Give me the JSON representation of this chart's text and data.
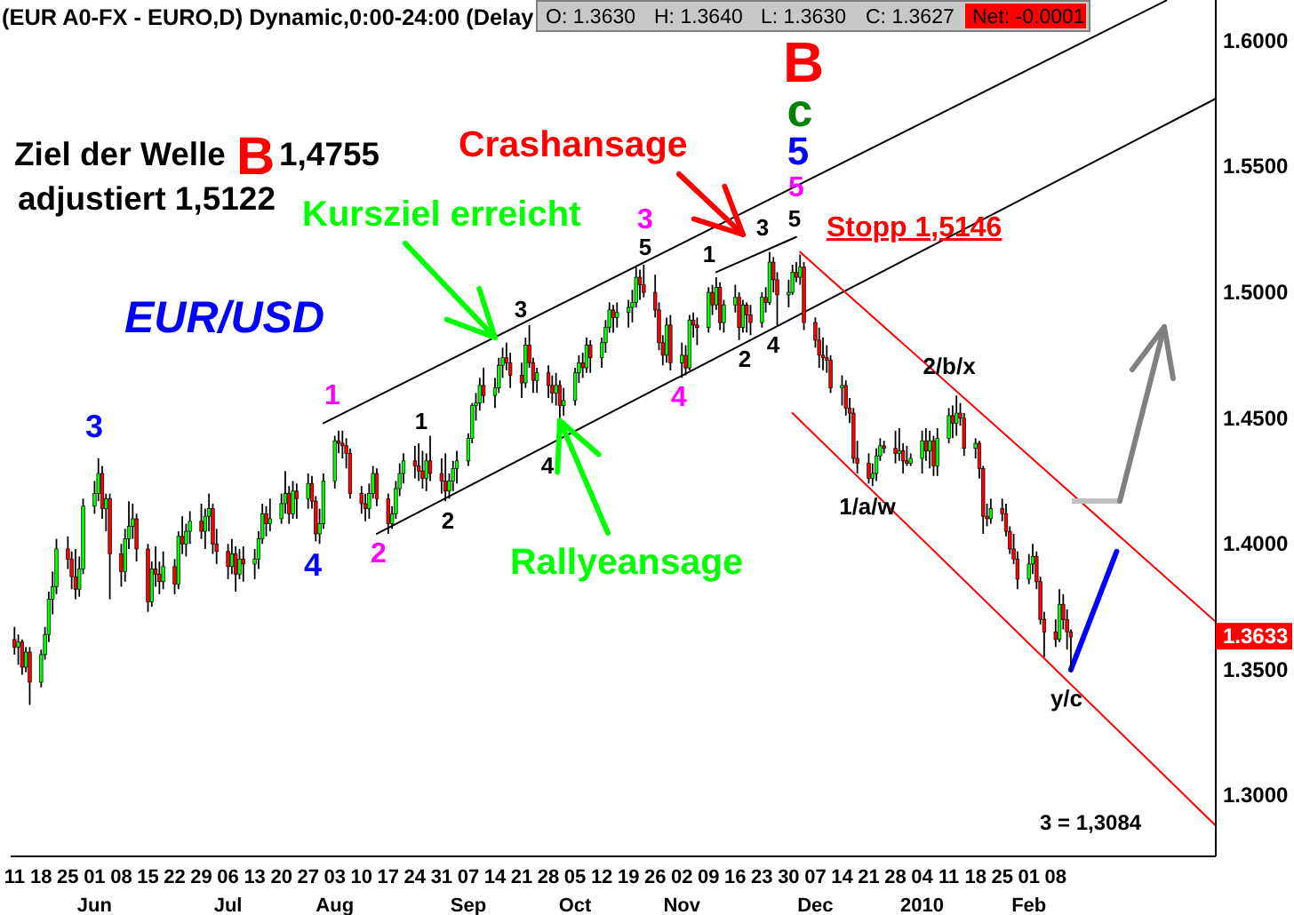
{
  "chart_data": {
    "type": "candlestick",
    "title": "(EUR A0-FX - EURO,D) Dynamic,0:00-24:00 (Delay",
    "series": [
      {
        "x": [
          "2009-05-11",
          "2009-05-12",
          "2009-05-13",
          "2009-05-14",
          "2009-05-15",
          "2009-05-18",
          "2009-05-19",
          "2009-05-20",
          "2009-05-21",
          "2009-05-22",
          "2009-05-25",
          "2009-05-26",
          "2009-05-27",
          "2009-05-28",
          "2009-05-29",
          "2009-06-01",
          "2009-06-02",
          "2009-06-03",
          "2009-06-04",
          "2009-06-05",
          "2009-06-08",
          "2009-06-09",
          "2009-06-10",
          "2009-06-11",
          "2009-06-12",
          "2009-06-15",
          "2009-06-16",
          "2009-06-17",
          "2009-06-18",
          "2009-06-19",
          "2009-06-22",
          "2009-06-23",
          "2009-06-24",
          "2009-06-25",
          "2009-06-26",
          "2009-06-29",
          "2009-06-30",
          "2009-07-01",
          "2009-07-02",
          "2009-07-03",
          "2009-07-06",
          "2009-07-07",
          "2009-07-08",
          "2009-07-09",
          "2009-07-10",
          "2009-07-13",
          "2009-07-14",
          "2009-07-15",
          "2009-07-16",
          "2009-07-17",
          "2009-07-20",
          "2009-07-21",
          "2009-07-22",
          "2009-07-23",
          "2009-07-24",
          "2009-07-27",
          "2009-07-28",
          "2009-07-29",
          "2009-07-30",
          "2009-07-31",
          "2009-08-03",
          "2009-08-04",
          "2009-08-05",
          "2009-08-06",
          "2009-08-07",
          "2009-08-10",
          "2009-08-11",
          "2009-08-12",
          "2009-08-13",
          "2009-08-14",
          "2009-08-17",
          "2009-08-18",
          "2009-08-19",
          "2009-08-20",
          "2009-08-21",
          "2009-08-24",
          "2009-08-25",
          "2009-08-26",
          "2009-08-27",
          "2009-08-28",
          "2009-08-31",
          "2009-09-01",
          "2009-09-02",
          "2009-09-03",
          "2009-09-04",
          "2009-09-07",
          "2009-09-08",
          "2009-09-09",
          "2009-09-10",
          "2009-09-11",
          "2009-09-14",
          "2009-09-15",
          "2009-09-16",
          "2009-09-17",
          "2009-09-18",
          "2009-09-21",
          "2009-09-22",
          "2009-09-23",
          "2009-09-24",
          "2009-09-25",
          "2009-09-28",
          "2009-09-29",
          "2009-09-30",
          "2009-10-01",
          "2009-10-02",
          "2009-10-05",
          "2009-10-06",
          "2009-10-07",
          "2009-10-08",
          "2009-10-09",
          "2009-10-12",
          "2009-10-13",
          "2009-10-14",
          "2009-10-15",
          "2009-10-16",
          "2009-10-19",
          "2009-10-20",
          "2009-10-21",
          "2009-10-22",
          "2009-10-23",
          "2009-10-26",
          "2009-10-27",
          "2009-10-28",
          "2009-10-29",
          "2009-10-30",
          "2009-11-02",
          "2009-11-03",
          "2009-11-04",
          "2009-11-05",
          "2009-11-06",
          "2009-11-09",
          "2009-11-10",
          "2009-11-11",
          "2009-11-12",
          "2009-11-13",
          "2009-11-16",
          "2009-11-17",
          "2009-11-18",
          "2009-11-19",
          "2009-11-20",
          "2009-11-23",
          "2009-11-24",
          "2009-11-25",
          "2009-11-26",
          "2009-11-27",
          "2009-11-30",
          "2009-12-01",
          "2009-12-02",
          "2009-12-03",
          "2009-12-04",
          "2009-12-07",
          "2009-12-08",
          "2009-12-09",
          "2009-12-10",
          "2009-12-11",
          "2009-12-14",
          "2009-12-15",
          "2009-12-16",
          "2009-12-17",
          "2009-12-18",
          "2009-12-21",
          "2009-12-22",
          "2009-12-23",
          "2009-12-24",
          "2009-12-25",
          "2009-12-28",
          "2009-12-29",
          "2009-12-30",
          "2009-12-31",
          "2010-01-01",
          "2010-01-04",
          "2010-01-05",
          "2010-01-06",
          "2010-01-07",
          "2010-01-08",
          "2010-01-11",
          "2010-01-12",
          "2010-01-13",
          "2010-01-14",
          "2010-01-15",
          "2010-01-18",
          "2010-01-19",
          "2010-01-20",
          "2010-01-21",
          "2010-01-22",
          "2010-01-25",
          "2010-01-26",
          "2010-01-27",
          "2010-01-28",
          "2010-01-29",
          "2010-02-01",
          "2010-02-02",
          "2010-02-03",
          "2010-02-04",
          "2010-02-05",
          "2010-02-08",
          "2010-02-09",
          "2010-02-10",
          "2010-02-11",
          "2010-02-12"
        ],
        "ohlc": [
          [
            1.362,
            1.367,
            1.356,
            1.359
          ],
          [
            1.359,
            1.364,
            1.352,
            1.361
          ],
          [
            1.361,
            1.362,
            1.348,
            1.351
          ],
          [
            1.351,
            1.359,
            1.349,
            1.357
          ],
          [
            1.357,
            1.359,
            1.336,
            1.345
          ],
          [
            1.345,
            1.358,
            1.343,
            1.356
          ],
          [
            1.356,
            1.367,
            1.354,
            1.364
          ],
          [
            1.364,
            1.381,
            1.361,
            1.378
          ],
          [
            1.378,
            1.389,
            1.372,
            1.383
          ],
          [
            1.383,
            1.402,
            1.38,
            1.398
          ],
          [
            1.398,
            1.403,
            1.39,
            1.394
          ],
          [
            1.394,
            1.397,
            1.382,
            1.387
          ],
          [
            1.387,
            1.398,
            1.378,
            1.382
          ],
          [
            1.382,
            1.395,
            1.379,
            1.39
          ],
          [
            1.39,
            1.418,
            1.388,
            1.415
          ],
          [
            1.415,
            1.425,
            1.412,
            1.42
          ],
          [
            1.42,
            1.434,
            1.417,
            1.428
          ],
          [
            1.428,
            1.431,
            1.41,
            1.414
          ],
          [
            1.414,
            1.42,
            1.405,
            1.418
          ],
          [
            1.418,
            1.42,
            1.378,
            1.396
          ],
          [
            1.396,
            1.4,
            1.383,
            1.389
          ],
          [
            1.389,
            1.406,
            1.385,
            1.402
          ],
          [
            1.402,
            1.417,
            1.398,
            1.407
          ],
          [
            1.407,
            1.416,
            1.402,
            1.41
          ],
          [
            1.41,
            1.412,
            1.393,
            1.398
          ],
          [
            1.398,
            1.4,
            1.373,
            1.377
          ],
          [
            1.377,
            1.393,
            1.375,
            1.39
          ],
          [
            1.39,
            1.399,
            1.383,
            1.388
          ],
          [
            1.388,
            1.393,
            1.38,
            1.385
          ],
          [
            1.385,
            1.397,
            1.382,
            1.391
          ],
          [
            1.391,
            1.394,
            1.38,
            1.384
          ],
          [
            1.384,
            1.405,
            1.382,
            1.403
          ],
          [
            1.403,
            1.411,
            1.396,
            1.4
          ],
          [
            1.4,
            1.408,
            1.395,
            1.405
          ],
          [
            1.405,
            1.413,
            1.4,
            1.409
          ],
          [
            1.409,
            1.416,
            1.402,
            1.405
          ],
          [
            1.405,
            1.414,
            1.398,
            1.411
          ],
          [
            1.411,
            1.42,
            1.405,
            1.414
          ],
          [
            1.414,
            1.416,
            1.396,
            1.4
          ],
          [
            1.4,
            1.406,
            1.392,
            1.397
          ],
          [
            1.397,
            1.4,
            1.386,
            1.391
          ],
          [
            1.391,
            1.402,
            1.388,
            1.396
          ],
          [
            1.396,
            1.399,
            1.381,
            1.388
          ],
          [
            1.388,
            1.398,
            1.386,
            1.394
          ],
          [
            1.394,
            1.399,
            1.385,
            1.392
          ],
          [
            1.392,
            1.398,
            1.386,
            1.394
          ],
          [
            1.394,
            1.405,
            1.39,
            1.402
          ],
          [
            1.402,
            1.416,
            1.4,
            1.412
          ],
          [
            1.412,
            1.415,
            1.403,
            1.408
          ],
          [
            1.408,
            1.418,
            1.405,
            1.41
          ],
          [
            1.41,
            1.42,
            1.408,
            1.416
          ],
          [
            1.416,
            1.429,
            1.412,
            1.42
          ],
          [
            1.42,
            1.423,
            1.408,
            1.412
          ],
          [
            1.412,
            1.425,
            1.41,
            1.421
          ],
          [
            1.421,
            1.424,
            1.41,
            1.418
          ],
          [
            1.418,
            1.428,
            1.414,
            1.424
          ],
          [
            1.424,
            1.427,
            1.414,
            1.417
          ],
          [
            1.417,
            1.419,
            1.401,
            1.404
          ],
          [
            1.404,
            1.414,
            1.4,
            1.408
          ],
          [
            1.408,
            1.428,
            1.406,
            1.425
          ],
          [
            1.425,
            1.443,
            1.422,
            1.441
          ],
          [
            1.441,
            1.445,
            1.436,
            1.44
          ],
          [
            1.44,
            1.445,
            1.434,
            1.439
          ],
          [
            1.439,
            1.442,
            1.43,
            1.436
          ],
          [
            1.436,
            1.438,
            1.418,
            1.42
          ],
          [
            1.42,
            1.423,
            1.412,
            1.416
          ],
          [
            1.416,
            1.42,
            1.409,
            1.414
          ],
          [
            1.414,
            1.424,
            1.41,
            1.42
          ],
          [
            1.42,
            1.431,
            1.418,
            1.428
          ],
          [
            1.428,
            1.43,
            1.415,
            1.418
          ],
          [
            1.418,
            1.42,
            1.404,
            1.408
          ],
          [
            1.408,
            1.415,
            1.406,
            1.412
          ],
          [
            1.412,
            1.425,
            1.41,
            1.422
          ],
          [
            1.422,
            1.432,
            1.419,
            1.428
          ],
          [
            1.428,
            1.436,
            1.424,
            1.433
          ],
          [
            1.433,
            1.439,
            1.426,
            1.431
          ],
          [
            1.431,
            1.44,
            1.425,
            1.429
          ],
          [
            1.429,
            1.437,
            1.422,
            1.426
          ],
          [
            1.426,
            1.436,
            1.421,
            1.433
          ],
          [
            1.433,
            1.443,
            1.425,
            1.428
          ],
          [
            1.428,
            1.434,
            1.42,
            1.425
          ],
          [
            1.425,
            1.436,
            1.417,
            1.421
          ],
          [
            1.421,
            1.428,
            1.418,
            1.425
          ],
          [
            1.425,
            1.433,
            1.421,
            1.43
          ],
          [
            1.43,
            1.437,
            1.424,
            1.433
          ],
          [
            1.433,
            1.444,
            1.431,
            1.442
          ],
          [
            1.442,
            1.456,
            1.44,
            1.455
          ],
          [
            1.455,
            1.46,
            1.449,
            1.456
          ],
          [
            1.456,
            1.466,
            1.453,
            1.463
          ],
          [
            1.463,
            1.47,
            1.456,
            1.459
          ],
          [
            1.459,
            1.466,
            1.454,
            1.462
          ],
          [
            1.462,
            1.474,
            1.46,
            1.471
          ],
          [
            1.471,
            1.478,
            1.466,
            1.474
          ],
          [
            1.474,
            1.48,
            1.469,
            1.472
          ],
          [
            1.472,
            1.476,
            1.462,
            1.467
          ],
          [
            1.467,
            1.472,
            1.458,
            1.464
          ],
          [
            1.464,
            1.482,
            1.462,
            1.479
          ],
          [
            1.479,
            1.487,
            1.47,
            1.472
          ],
          [
            1.472,
            1.474,
            1.46,
            1.465
          ],
          [
            1.465,
            1.47,
            1.46,
            1.468
          ],
          [
            1.468,
            1.471,
            1.458,
            1.463
          ],
          [
            1.463,
            1.467,
            1.456,
            1.46
          ],
          [
            1.46,
            1.468,
            1.455,
            1.463
          ],
          [
            1.463,
            1.465,
            1.449,
            1.455
          ],
          [
            1.455,
            1.462,
            1.451,
            1.457
          ],
          [
            1.457,
            1.47,
            1.455,
            1.468
          ],
          [
            1.468,
            1.475,
            1.464,
            1.472
          ],
          [
            1.472,
            1.476,
            1.466,
            1.47
          ],
          [
            1.47,
            1.482,
            1.468,
            1.479
          ],
          [
            1.479,
            1.481,
            1.468,
            1.474
          ],
          [
            1.474,
            1.482,
            1.47,
            1.48
          ],
          [
            1.48,
            1.489,
            1.476,
            1.486
          ],
          [
            1.486,
            1.496,
            1.484,
            1.493
          ],
          [
            1.493,
            1.495,
            1.484,
            1.49
          ],
          [
            1.49,
            1.496,
            1.486,
            1.492
          ],
          [
            1.492,
            1.497,
            1.486,
            1.494
          ],
          [
            1.494,
            1.501,
            1.488,
            1.496
          ],
          [
            1.496,
            1.51,
            1.494,
            1.506
          ],
          [
            1.506,
            1.509,
            1.497,
            1.503
          ],
          [
            1.503,
            1.511,
            1.498,
            1.5
          ],
          [
            1.5,
            1.507,
            1.49,
            1.493
          ],
          [
            1.493,
            1.496,
            1.477,
            1.48
          ],
          [
            1.48,
            1.483,
            1.471,
            1.475
          ],
          [
            1.475,
            1.49,
            1.472,
            1.487
          ],
          [
            1.487,
            1.491,
            1.469,
            1.472
          ],
          [
            1.472,
            1.48,
            1.466,
            1.475
          ],
          [
            1.475,
            1.479,
            1.467,
            1.47
          ],
          [
            1.47,
            1.491,
            1.469,
            1.489
          ],
          [
            1.489,
            1.492,
            1.482,
            1.487
          ],
          [
            1.487,
            1.49,
            1.479,
            1.486
          ],
          [
            1.486,
            1.502,
            1.484,
            1.5
          ],
          [
            1.5,
            1.503,
            1.491,
            1.495
          ],
          [
            1.495,
            1.506,
            1.493,
            1.502
          ],
          [
            1.502,
            1.504,
            1.485,
            1.488
          ],
          [
            1.488,
            1.497,
            1.484,
            1.495
          ],
          [
            1.495,
            1.503,
            1.492,
            1.498
          ],
          [
            1.498,
            1.5,
            1.481,
            1.486
          ],
          [
            1.486,
            1.497,
            1.484,
            1.495
          ],
          [
            1.495,
            1.496,
            1.484,
            1.491
          ],
          [
            1.491,
            1.495,
            1.483,
            1.488
          ],
          [
            1.488,
            1.5,
            1.486,
            1.498
          ],
          [
            1.498,
            1.502,
            1.492,
            1.496
          ],
          [
            1.496,
            1.516,
            1.495,
            1.512
          ],
          [
            1.512,
            1.514,
            1.5,
            1.505
          ],
          [
            1.505,
            1.508,
            1.487,
            1.499
          ],
          [
            1.499,
            1.505,
            1.494,
            1.5
          ],
          [
            1.5,
            1.511,
            1.499,
            1.508
          ],
          [
            1.508,
            1.512,
            1.504,
            1.506
          ],
          [
            1.506,
            1.515,
            1.503,
            1.51
          ],
          [
            1.51,
            1.512,
            1.485,
            1.488
          ],
          [
            1.488,
            1.49,
            1.478,
            1.481
          ],
          [
            1.481,
            1.486,
            1.47,
            1.475
          ],
          [
            1.475,
            1.482,
            1.469,
            1.474
          ],
          [
            1.474,
            1.479,
            1.468,
            1.473
          ],
          [
            1.473,
            1.475,
            1.46,
            1.462
          ],
          [
            1.462,
            1.467,
            1.455,
            1.463
          ],
          [
            1.463,
            1.465,
            1.451,
            1.454
          ],
          [
            1.454,
            1.458,
            1.448,
            1.452
          ],
          [
            1.452,
            1.454,
            1.432,
            1.434
          ],
          [
            1.434,
            1.441,
            1.428,
            1.432
          ],
          [
            1.432,
            1.436,
            1.424,
            1.426
          ],
          [
            1.426,
            1.432,
            1.423,
            1.428
          ],
          [
            1.428,
            1.438,
            1.425,
            1.435
          ],
          [
            1.435,
            1.442,
            1.433,
            1.439
          ],
          [
            1.439,
            1.441,
            1.436,
            1.438
          ],
          [
            1.438,
            1.445,
            1.432,
            1.436
          ],
          [
            1.436,
            1.446,
            1.433,
            1.437
          ],
          [
            1.437,
            1.44,
            1.428,
            1.433
          ],
          [
            1.433,
            1.439,
            1.431,
            1.432
          ],
          [
            1.432,
            1.436,
            1.431,
            1.434
          ],
          [
            1.434,
            1.445,
            1.428,
            1.441
          ],
          [
            1.441,
            1.446,
            1.433,
            1.437
          ],
          [
            1.437,
            1.445,
            1.43,
            1.441
          ],
          [
            1.441,
            1.443,
            1.427,
            1.431
          ],
          [
            1.431,
            1.446,
            1.427,
            1.442
          ],
          [
            1.442,
            1.454,
            1.44,
            1.451
          ],
          [
            1.451,
            1.455,
            1.442,
            1.448
          ],
          [
            1.448,
            1.459,
            1.443,
            1.452
          ],
          [
            1.452,
            1.456,
            1.447,
            1.45
          ],
          [
            1.45,
            1.452,
            1.435,
            1.438
          ],
          [
            1.438,
            1.442,
            1.434,
            1.44
          ],
          [
            1.44,
            1.441,
            1.426,
            1.43
          ],
          [
            1.43,
            1.431,
            1.404,
            1.411
          ],
          [
            1.411,
            1.416,
            1.407,
            1.41
          ],
          [
            1.41,
            1.418,
            1.408,
            1.414
          ],
          [
            1.414,
            1.418,
            1.409,
            1.412
          ],
          [
            1.412,
            1.416,
            1.403,
            1.405
          ],
          [
            1.405,
            1.407,
            1.396,
            1.398
          ],
          [
            1.398,
            1.404,
            1.392,
            1.394
          ],
          [
            1.394,
            1.397,
            1.382,
            1.386
          ],
          [
            1.386,
            1.396,
            1.384,
            1.392
          ],
          [
            1.392,
            1.4,
            1.388,
            1.395
          ],
          [
            1.395,
            1.397,
            1.382,
            1.385
          ],
          [
            1.385,
            1.387,
            1.368,
            1.37
          ],
          [
            1.37,
            1.373,
            1.355,
            1.365
          ],
          [
            1.365,
            1.37,
            1.359,
            1.362
          ],
          [
            1.362,
            1.382,
            1.361,
            1.376
          ],
          [
            1.376,
            1.38,
            1.366,
            1.37
          ],
          [
            1.37,
            1.374,
            1.358,
            1.365
          ],
          [
            1.365,
            1.366,
            1.349,
            1.363
          ]
        ],
        "colors": [
          "#ff0000",
          "#00ff00",
          "#ff0000",
          "#00ff00",
          "#ff0000",
          "#00ff00",
          "#00ff00",
          "#00ff00",
          "#00ff00",
          "#00ff00",
          "#ff0000",
          "#ff0000",
          "#ff0000",
          "#00ff00",
          "#00ff00",
          "#00ff00",
          "#00ff00",
          "#ff0000",
          "#00ff00",
          "#ff0000",
          "#ff0000",
          "#00ff00",
          "#00ff00",
          "#00ff00",
          "#ff0000",
          "#ff0000",
          "#00ff00",
          "#ff0000",
          "#ff0000",
          "#00ff00",
          "#ff0000",
          "#00ff00",
          "#ff0000",
          "#00ff00",
          "#00ff00",
          "#ff0000",
          "#00ff00",
          "#00ff00",
          "#ff0000",
          "#ff0000",
          "#ff0000",
          "#00ff00",
          "#ff0000",
          "#00ff00",
          "#ff0000",
          "#00ff00",
          "#00ff00",
          "#00ff00",
          "#ff0000",
          "#00ff00",
          "#00ff00",
          "#00ff00",
          "#ff0000",
          "#00ff00",
          "#ff0000",
          "#00ff00",
          "#ff0000",
          "#ff0000",
          "#00ff00",
          "#00ff00",
          "#00ff00",
          "#ff0000",
          "#ff0000",
          "#ff0000",
          "#ff0000",
          "#ff0000",
          "#ff0000",
          "#00ff00",
          "#00ff00",
          "#ff0000",
          "#ff0000",
          "#00ff00",
          "#00ff00",
          "#00ff00",
          "#00ff00",
          "#ff0000",
          "#ff0000",
          "#ff0000",
          "#00ff00",
          "#ff0000",
          "#ff0000",
          "#ff0000",
          "#00ff00",
          "#00ff00",
          "#00ff00",
          "#00ff00",
          "#00ff00",
          "#00ff00",
          "#00ff00",
          "#ff0000",
          "#00ff00",
          "#00ff00",
          "#00ff00",
          "#ff0000",
          "#ff0000",
          "#ff0000",
          "#00ff00",
          "#ff0000",
          "#ff0000",
          "#00ff00",
          "#ff0000",
          "#ff0000",
          "#00ff00",
          "#ff0000",
          "#00ff00",
          "#00ff00",
          "#00ff00",
          "#ff0000",
          "#00ff00",
          "#ff0000",
          "#00ff00",
          "#00ff00",
          "#00ff00",
          "#ff0000",
          "#00ff00",
          "#00ff00",
          "#00ff00",
          "#00ff00",
          "#ff0000",
          "#ff0000",
          "#ff0000",
          "#ff0000",
          "#ff0000",
          "#00ff00",
          "#ff0000",
          "#00ff00",
          "#ff0000",
          "#00ff00",
          "#ff0000",
          "#ff0000",
          "#00ff00",
          "#ff0000",
          "#00ff00",
          "#ff0000",
          "#00ff00",
          "#00ff00",
          "#ff0000",
          "#00ff00",
          "#ff0000",
          "#ff0000",
          "#00ff00",
          "#ff0000",
          "#00ff00",
          "#ff0000",
          "#ff0000",
          "#00ff00",
          "#00ff00",
          "#ff0000",
          "#00ff00",
          "#ff0000",
          "#ff0000",
          "#ff0000",
          "#ff0000",
          "#ff0000",
          "#ff0000",
          "#00ff00",
          "#ff0000",
          "#ff0000",
          "#ff0000",
          "#ff0000",
          "#ff0000",
          "#00ff00",
          "#00ff00",
          "#00ff00",
          "#ff0000",
          "#ff0000",
          "#00ff00",
          "#ff0000",
          "#ff0000",
          "#00ff00",
          "#00ff00",
          "#ff0000",
          "#00ff00",
          "#ff0000",
          "#00ff00",
          "#00ff00",
          "#ff0000",
          "#00ff00",
          "#ff0000",
          "#ff0000",
          "#00ff00",
          "#ff0000",
          "#ff0000",
          "#ff0000",
          "#00ff00",
          "#ff0000",
          "#ff0000",
          "#ff0000",
          "#ff0000",
          "#ff0000",
          "#00ff00",
          "#00ff00",
          "#ff0000",
          "#ff0000",
          "#ff0000",
          "#ff0000",
          "#00ff00",
          "#ff0000",
          "#ff0000",
          "#ff0000"
        ]
      },
      {
        "type": "line",
        "color": "#000000",
        "x": [
          "2009-07-31",
          "2010-03-09"
        ],
        "values": [
          1.448,
          1.616
        ]
      },
      {
        "type": "line",
        "color": "#000000",
        "x": [
          "2009-08-14",
          "2010-03-22"
        ],
        "values": [
          1.404,
          1.577
        ]
      },
      {
        "type": "line",
        "color": "#000000",
        "x": [
          "2009-11-11",
          "2009-12-02"
        ],
        "values": [
          1.508,
          1.522
        ]
      },
      {
        "type": "line",
        "color": "#ff0000",
        "x": [
          "2009-12-03",
          "2010-03-22"
        ],
        "values": [
          1.516,
          1.369
        ]
      },
      {
        "type": "line",
        "color": "#ff0000",
        "x": [
          "2009-12-01",
          "2010-03-22"
        ],
        "values": [
          1.452,
          1.288
        ]
      },
      {
        "type": "line",
        "color": "#0000ff",
        "x": [
          "2010-02-12",
          "2010-02-24"
        ],
        "values": [
          1.35,
          1.397
        ]
      }
    ],
    "xlim": [
      "2009-05-10",
      "2010-03-22"
    ],
    "xticks": [
      {
        "value": "2009-05-11",
        "label": "11"
      },
      {
        "value": "2009-05-18",
        "label": "18"
      },
      {
        "value": "2009-05-25",
        "label": "25"
      },
      {
        "value": "2009-06-01",
        "label": "01\nJun"
      },
      {
        "value": "2009-06-08",
        "label": "08"
      },
      {
        "value": "2009-06-15",
        "label": "15"
      },
      {
        "value": "2009-06-22",
        "label": "22"
      },
      {
        "value": "2009-06-29",
        "label": "29"
      },
      {
        "value": "2009-07-06",
        "label": "06\nJul"
      },
      {
        "value": "2009-07-13",
        "label": "13"
      },
      {
        "value": "2009-07-20",
        "label": "20"
      },
      {
        "value": "2009-07-27",
        "label": "27"
      },
      {
        "value": "2009-08-03",
        "label": "03\nAug"
      },
      {
        "value": "2009-08-10",
        "label": "10"
      },
      {
        "value": "2009-08-17",
        "label": "17"
      },
      {
        "value": "2009-08-24",
        "label": "24"
      },
      {
        "value": "2009-08-31",
        "label": "31"
      },
      {
        "value": "2009-09-07",
        "label": "07\nSep"
      },
      {
        "value": "2009-09-14",
        "label": "14"
      },
      {
        "value": "2009-09-21",
        "label": "21"
      },
      {
        "value": "2009-09-28",
        "label": "28"
      },
      {
        "value": "2009-10-05",
        "label": "05\nOct"
      },
      {
        "value": "2009-10-12",
        "label": "12"
      },
      {
        "value": "2009-10-19",
        "label": "19"
      },
      {
        "value": "2009-10-26",
        "label": "26"
      },
      {
        "value": "2009-11-02",
        "label": "02\nNov"
      },
      {
        "value": "2009-11-09",
        "label": "09"
      },
      {
        "value": "2009-11-16",
        "label": "16"
      },
      {
        "value": "2009-11-23",
        "label": "23"
      },
      {
        "value": "2009-11-30",
        "label": "30"
      },
      {
        "value": "2009-12-07",
        "label": "07\nDec"
      },
      {
        "value": "2009-12-14",
        "label": "14"
      },
      {
        "value": "2009-12-21",
        "label": "21"
      },
      {
        "value": "2009-12-28",
        "label": "28"
      },
      {
        "value": "2010-01-04",
        "label": "04\n2010"
      },
      {
        "value": "2010-01-11",
        "label": "11"
      },
      {
        "value": "2010-01-18",
        "label": "18"
      },
      {
        "value": "2010-01-25",
        "label": "25"
      },
      {
        "value": "2010-02-01",
        "label": "01\nFeb"
      },
      {
        "value": "2010-02-08",
        "label": "08"
      }
    ],
    "ylim": [
      1.2758,
      1.6162
    ],
    "yticks": [
      {
        "value": 1.6,
        "label": "1.6000"
      },
      {
        "value": 1.55,
        "label": "1.5500"
      },
      {
        "value": 1.5,
        "label": "1.5000"
      },
      {
        "value": 1.45,
        "label": "1.4500"
      },
      {
        "value": 1.4,
        "label": "1.4000"
      },
      {
        "value": 1.35,
        "label": "1.3500"
      },
      {
        "value": 1.3,
        "label": "1.3000"
      }
    ],
    "annotations": [
      "Ziel der Welle",
      "B",
      "1,4755",
      "adjustiert 1,5122",
      "Crashansage",
      {
        "text": "Kursziel erreicht",
        "x": "2009-09-14",
        "y": 1.482
      },
      "EUR/USD",
      {
        "text": "Rallyeansage",
        "x": "2009-10-01",
        "y": 1.449
      },
      "Stopp 1,5146",
      "3 = 1,3084",
      "O: 1.3630",
      "H: 1.3640",
      "L: 1.3630",
      "C: 1.3627",
      "Net: -0.0001",
      {
        "text": "1.3633",
        "y": 1.3633
      },
      "3",
      "4",
      "1",
      "2",
      "1",
      "2",
      "3",
      "4",
      "3",
      "5",
      "4",
      "1",
      "2",
      "3",
      "4",
      "5",
      "5",
      "5",
      "c",
      "B",
      "2/b/x",
      "1/a/w",
      "y/c"
    ]
  }
}
